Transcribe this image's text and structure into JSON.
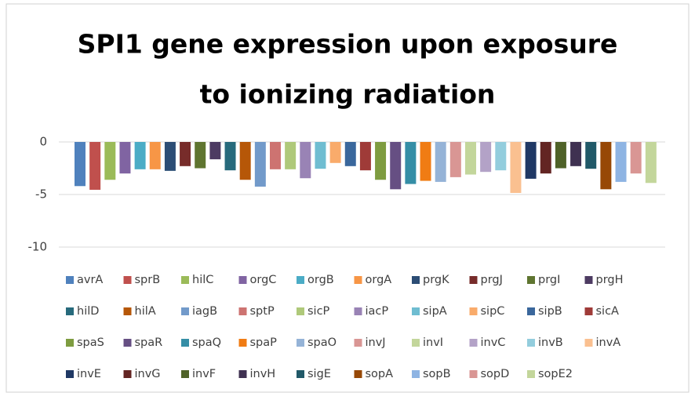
{
  "chart_data": {
    "type": "bar",
    "title": [
      "SPI1 gene expression upon exposure",
      "to ionizing radiation"
    ],
    "ylim": [
      -10,
      0
    ],
    "yticks": [
      0,
      -5,
      -10
    ],
    "grid": true,
    "legend": "bottom",
    "series": [
      {
        "name": "avrA",
        "color": "#4f81bd",
        "values": [
          -4.2
        ]
      },
      {
        "name": "sprB",
        "color": "#c0504d",
        "values": [
          -4.55
        ]
      },
      {
        "name": "hilC",
        "color": "#9bbb59",
        "values": [
          -3.6
        ]
      },
      {
        "name": "orgC",
        "color": "#8064a2",
        "values": [
          -3.0
        ]
      },
      {
        "name": "orgB",
        "color": "#4bacc6",
        "values": [
          -2.6
        ]
      },
      {
        "name": "orgA",
        "color": "#f79646",
        "values": [
          -2.6
        ]
      },
      {
        "name": "prgK",
        "color": "#2c4d75",
        "values": [
          -2.75
        ]
      },
      {
        "name": "prgJ",
        "color": "#772c2a",
        "values": [
          -2.3
        ]
      },
      {
        "name": "prgI",
        "color": "#5f7530",
        "values": [
          -2.5
        ]
      },
      {
        "name": "prgH",
        "color": "#4d3b62",
        "values": [
          -1.65
        ]
      },
      {
        "name": "hilD",
        "color": "#276a7c",
        "values": [
          -2.7
        ]
      },
      {
        "name": "hilA",
        "color": "#b65708",
        "values": [
          -3.6
        ]
      },
      {
        "name": "iagB",
        "color": "#729aca",
        "values": [
          -4.25
        ]
      },
      {
        "name": "sptP",
        "color": "#cd7371",
        "values": [
          -2.6
        ]
      },
      {
        "name": "sicP",
        "color": "#afc97a",
        "values": [
          -2.6
        ]
      },
      {
        "name": "iacP",
        "color": "#9983b5",
        "values": [
          -3.45
        ]
      },
      {
        "name": "sipA",
        "color": "#6fbdd1",
        "values": [
          -2.55
        ]
      },
      {
        "name": "sipC",
        "color": "#f9ab6b",
        "values": [
          -2.0
        ]
      },
      {
        "name": "sipB",
        "color": "#3a679c",
        "values": [
          -2.3
        ]
      },
      {
        "name": "sicA",
        "color": "#9f3b38",
        "values": [
          -2.7
        ]
      },
      {
        "name": "spaS",
        "color": "#7e9c40",
        "values": [
          -3.6
        ]
      },
      {
        "name": "spaR",
        "color": "#664f83",
        "values": [
          -4.5
        ]
      },
      {
        "name": "spaQ",
        "color": "#358ea6",
        "values": [
          -4.0
        ]
      },
      {
        "name": "spaP",
        "color": "#f07c14",
        "values": [
          -3.7
        ]
      },
      {
        "name": "spaO",
        "color": "#95b3d7",
        "values": [
          -3.8
        ]
      },
      {
        "name": "invJ",
        "color": "#d99694",
        "values": [
          -3.35
        ]
      },
      {
        "name": "invI",
        "color": "#c3d69b",
        "values": [
          -3.1
        ]
      },
      {
        "name": "invC",
        "color": "#b3a2c7",
        "values": [
          -2.85
        ]
      },
      {
        "name": "invB",
        "color": "#93cddd",
        "values": [
          -2.7
        ]
      },
      {
        "name": "invA",
        "color": "#fac090",
        "values": [
          -4.85
        ]
      },
      {
        "name": "invE",
        "color": "#1f3864",
        "values": [
          -3.5
        ]
      },
      {
        "name": "invG",
        "color": "#632523",
        "values": [
          -3.0
        ]
      },
      {
        "name": "invF",
        "color": "#4f6228",
        "values": [
          -2.5
        ]
      },
      {
        "name": "invH",
        "color": "#3f3151",
        "values": [
          -2.3
        ]
      },
      {
        "name": "sigE",
        "color": "#215968",
        "values": [
          -2.55
        ]
      },
      {
        "name": "sopA",
        "color": "#974806",
        "values": [
          -4.5
        ]
      },
      {
        "name": "sopB",
        "color": "#8eb4e3",
        "values": [
          -3.8
        ]
      },
      {
        "name": "sopD",
        "color": "#d99694",
        "values": [
          -3.0
        ]
      },
      {
        "name": "sopE2",
        "color": "#c3d69b",
        "values": [
          -3.9
        ]
      }
    ]
  }
}
